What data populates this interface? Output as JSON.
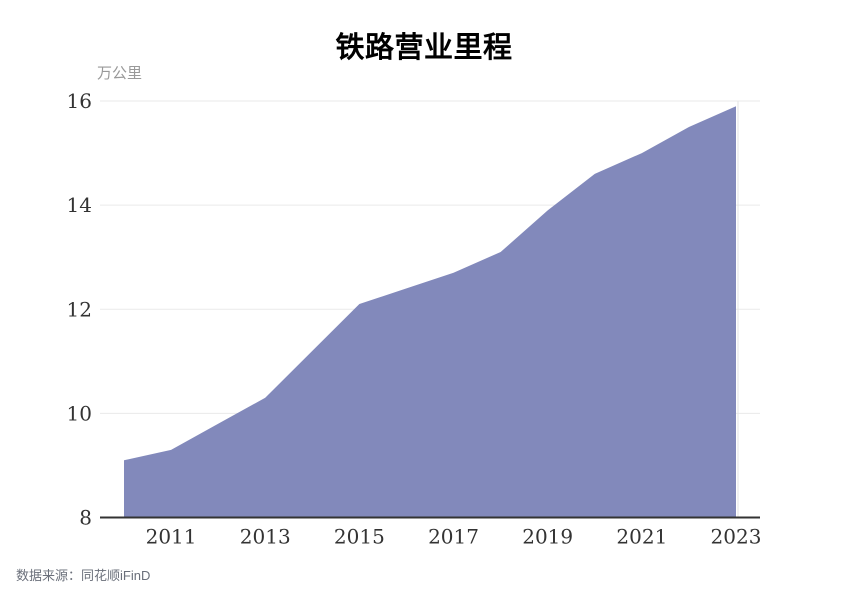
{
  "title": "铁路营业里程",
  "unit_label": "万公里",
  "source": "数据来源：同花顺iFinD",
  "colors": {
    "area": "#8289BB",
    "grid": "#EAEAEA",
    "axis": "#333333",
    "tick_text": "#333333",
    "pointer_line": "#E3E3E3"
  },
  "chart_data": {
    "type": "area",
    "title": "铁路营业里程",
    "ylabel": "万公里",
    "x": [
      2010,
      2011,
      2012,
      2013,
      2014,
      2015,
      2016,
      2017,
      2018,
      2019,
      2020,
      2021,
      2022,
      2023
    ],
    "values": [
      9.1,
      9.3,
      9.8,
      10.3,
      11.2,
      12.1,
      12.4,
      12.7,
      13.1,
      13.9,
      14.6,
      15.0,
      15.5,
      15.9
    ],
    "ylim": [
      8,
      16
    ],
    "y_ticks": [
      8,
      10,
      12,
      14,
      16
    ],
    "x_tick_years": [
      2011,
      2013,
      2015,
      2017,
      2019,
      2021,
      2023
    ],
    "grid": "horizontal",
    "legend": "none",
    "source": "数据来源：同花顺iFinD"
  }
}
